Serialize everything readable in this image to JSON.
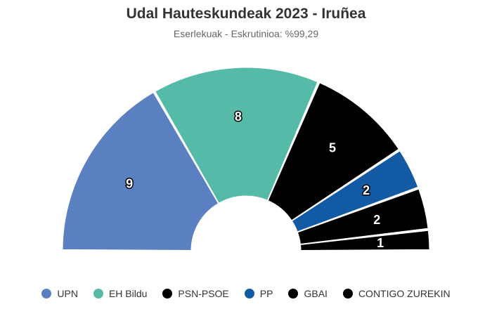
{
  "chart_data": {
    "type": "pie",
    "subtype": "parliament-semicircle",
    "title": "Udal Hauteskundeak 2023 - Iruñea",
    "subtitle": "Eserlekuak - Eskrutinioa: %99,29",
    "series": [
      {
        "name": "UPN",
        "value": 9,
        "color": "#5a80c2"
      },
      {
        "name": "EH Bildu",
        "value": 8,
        "color": "#55bba8"
      },
      {
        "name": "PSN-PSOE",
        "value": 5,
        "color": "#000000"
      },
      {
        "name": "PP",
        "value": 2,
        "color": "#135aa5"
      },
      {
        "name": "GBAI",
        "value": 2,
        "color": "#000000"
      },
      {
        "name": "CONTIGO ZUREKIN",
        "value": 1,
        "color": "#000000"
      }
    ],
    "legend": "bottom"
  }
}
